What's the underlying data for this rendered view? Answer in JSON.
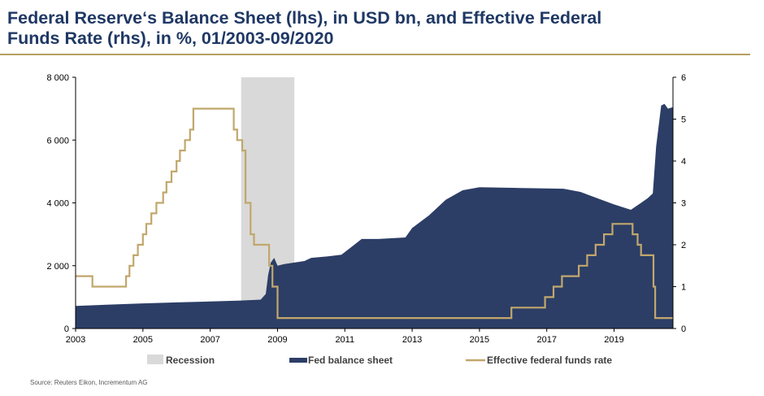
{
  "title": {
    "line1": "Federal Reserve‘s Balance Sheet (lhs), in USD bn, and Effective Federal",
    "line2": "Funds Rate (rhs), in %, 01/2003-09/2020"
  },
  "source": "Source: Reuters Eikon, Incrementum AG",
  "colors": {
    "balance_sheet": "#2c3e66",
    "fed_funds": "#c1a76c",
    "recession": "#d9d9d9",
    "title": "#1f3864",
    "rule": "#b5a160"
  },
  "chart_data": {
    "type": "area",
    "x_range": [
      2003.0,
      2020.75
    ],
    "x_ticks": [
      "2003",
      "2005",
      "2007",
      "2009",
      "2011",
      "2013",
      "2015",
      "2017",
      "2019"
    ],
    "y_left": {
      "range": [
        0,
        8000
      ],
      "ticks": [
        "0",
        "2 000",
        "4 000",
        "6 000",
        "8 000"
      ]
    },
    "y_right": {
      "range": [
        0,
        6
      ],
      "ticks": [
        "0",
        "1",
        "2",
        "3",
        "4",
        "5",
        "6"
      ]
    },
    "recession": {
      "start": 2007.92,
      "end": 2009.5,
      "label": "Recession"
    },
    "series": [
      {
        "name": "Fed balance sheet",
        "axis": "left",
        "type": "area",
        "points": [
          [
            2003.0,
            720
          ],
          [
            2004.0,
            760
          ],
          [
            2005.0,
            800
          ],
          [
            2006.0,
            830
          ],
          [
            2007.0,
            860
          ],
          [
            2007.9,
            890
          ],
          [
            2008.5,
            920
          ],
          [
            2008.65,
            1100
          ],
          [
            2008.72,
            1700
          ],
          [
            2008.8,
            2100
          ],
          [
            2008.9,
            2250
          ],
          [
            2009.0,
            2000
          ],
          [
            2009.2,
            2050
          ],
          [
            2009.5,
            2100
          ],
          [
            2009.8,
            2150
          ],
          [
            2010.0,
            2250
          ],
          [
            2010.5,
            2300
          ],
          [
            2010.9,
            2350
          ],
          [
            2011.2,
            2600
          ],
          [
            2011.5,
            2850
          ],
          [
            2012.0,
            2850
          ],
          [
            2012.8,
            2900
          ],
          [
            2013.0,
            3200
          ],
          [
            2013.5,
            3600
          ],
          [
            2014.0,
            4100
          ],
          [
            2014.5,
            4400
          ],
          [
            2015.0,
            4500
          ],
          [
            2016.0,
            4480
          ],
          [
            2017.0,
            4460
          ],
          [
            2017.5,
            4450
          ],
          [
            2018.0,
            4350
          ],
          [
            2018.5,
            4150
          ],
          [
            2019.0,
            3950
          ],
          [
            2019.5,
            3780
          ],
          [
            2019.8,
            4000
          ],
          [
            2020.0,
            4150
          ],
          [
            2020.15,
            4300
          ],
          [
            2020.25,
            5800
          ],
          [
            2020.4,
            7100
          ],
          [
            2020.5,
            7150
          ],
          [
            2020.6,
            7000
          ],
          [
            2020.75,
            7050
          ]
        ]
      },
      {
        "name": "Effective federal funds rate",
        "axis": "right",
        "type": "step",
        "points": [
          [
            2003.0,
            1.25
          ],
          [
            2003.5,
            1.0
          ],
          [
            2004.5,
            1.25
          ],
          [
            2004.6,
            1.5
          ],
          [
            2004.72,
            1.75
          ],
          [
            2004.85,
            2.0
          ],
          [
            2005.0,
            2.25
          ],
          [
            2005.1,
            2.5
          ],
          [
            2005.25,
            2.75
          ],
          [
            2005.4,
            3.0
          ],
          [
            2005.6,
            3.25
          ],
          [
            2005.7,
            3.5
          ],
          [
            2005.85,
            3.75
          ],
          [
            2006.0,
            4.0
          ],
          [
            2006.1,
            4.25
          ],
          [
            2006.25,
            4.5
          ],
          [
            2006.4,
            4.75
          ],
          [
            2006.5,
            5.25
          ],
          [
            2007.7,
            4.75
          ],
          [
            2007.8,
            4.5
          ],
          [
            2007.95,
            4.25
          ],
          [
            2008.05,
            3.0
          ],
          [
            2008.2,
            2.25
          ],
          [
            2008.3,
            2.0
          ],
          [
            2008.75,
            1.5
          ],
          [
            2008.85,
            1.0
          ],
          [
            2009.0,
            0.25
          ],
          [
            2015.95,
            0.5
          ],
          [
            2016.95,
            0.75
          ],
          [
            2017.2,
            1.0
          ],
          [
            2017.45,
            1.25
          ],
          [
            2017.95,
            1.5
          ],
          [
            2018.2,
            1.75
          ],
          [
            2018.45,
            2.0
          ],
          [
            2018.7,
            2.25
          ],
          [
            2018.95,
            2.5
          ],
          [
            2019.55,
            2.25
          ],
          [
            2019.7,
            2.0
          ],
          [
            2019.8,
            1.75
          ],
          [
            2020.17,
            1.0
          ],
          [
            2020.22,
            0.25
          ],
          [
            2020.75,
            0.25
          ]
        ]
      }
    ],
    "legend": [
      "Recession",
      "Fed balance sheet",
      "Effective federal funds rate"
    ],
    "legend_position": "bottom"
  }
}
